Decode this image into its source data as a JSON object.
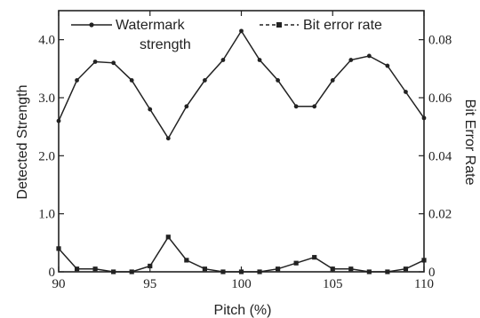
{
  "chart_data": {
    "type": "line",
    "xlabel": "Pitch (%)",
    "ylabel_left": "Detected Strength",
    "ylabel_right": "Bit Error Rate",
    "xlim": [
      90,
      110
    ],
    "ylim_left": [
      0,
      4.5
    ],
    "ylim_right": [
      0,
      0.09
    ],
    "x_ticks": [
      90,
      95,
      100,
      105,
      110
    ],
    "x_tick_labels": [
      "90",
      "95",
      "100",
      "105",
      "110"
    ],
    "y_left_ticks": [
      0,
      1.0,
      2.0,
      3.0,
      4.0
    ],
    "y_left_tick_labels": [
      "0",
      "1.0",
      "2.0",
      "3.0",
      "4.0"
    ],
    "y_right_ticks": [
      0,
      0.02,
      0.04,
      0.06,
      0.08
    ],
    "y_right_tick_labels": [
      "0",
      "0.02",
      "0.04",
      "0.06",
      "0.08"
    ],
    "grid": false,
    "legend_position": "top",
    "series": [
      {
        "name": "Watermark strength",
        "axis": "left",
        "marker": "dot",
        "x": [
          90,
          91,
          92,
          93,
          94,
          95,
          96,
          97,
          98,
          99,
          100,
          101,
          102,
          103,
          104,
          105,
          106,
          107,
          108,
          109,
          110
        ],
        "values": [
          2.6,
          3.3,
          3.62,
          3.6,
          3.3,
          2.8,
          2.3,
          2.85,
          3.3,
          3.65,
          4.15,
          3.65,
          3.3,
          2.85,
          2.85,
          3.3,
          3.65,
          3.72,
          3.55,
          3.1,
          2.65
        ]
      },
      {
        "name": "Bit error rate",
        "axis": "right",
        "marker": "square",
        "x": [
          90,
          91,
          92,
          93,
          94,
          95,
          96,
          97,
          98,
          99,
          100,
          101,
          102,
          103,
          104,
          105,
          106,
          107,
          108,
          109,
          110
        ],
        "values": [
          0.008,
          0.001,
          0.001,
          0.0,
          0.0,
          0.002,
          0.012,
          0.004,
          0.001,
          0.0,
          0.0,
          0.0,
          0.001,
          0.003,
          0.005,
          0.001,
          0.001,
          0.0,
          0.0,
          0.001,
          0.004
        ]
      }
    ],
    "legend": {
      "label_1_line1": "Watermark",
      "label_1_line2": "strength",
      "label_2": "Bit error rate"
    }
  }
}
